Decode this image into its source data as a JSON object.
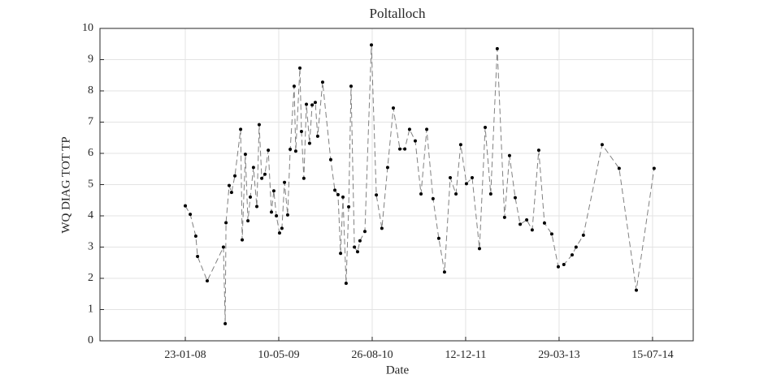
{
  "chart_data": {
    "type": "line",
    "title": "Poltalloch",
    "xlabel": "Date",
    "ylabel": "WQ DIAG TOT TP",
    "x": [
      "2008-01-23",
      "2008-02-17",
      "2008-03-16",
      "2008-03-25",
      "2008-05-13",
      "2008-08-03",
      "2008-08-12",
      "2008-08-16",
      "2008-09-01",
      "2008-09-13",
      "2008-09-30",
      "2008-10-29",
      "2008-11-06",
      "2008-11-22",
      "2008-12-05",
      "2008-12-17",
      "2009-01-02",
      "2009-01-19",
      "2009-01-31",
      "2009-02-13",
      "2009-03-01",
      "2009-03-18",
      "2009-04-03",
      "2009-04-15",
      "2009-04-28",
      "2009-05-14",
      "2009-05-26",
      "2009-06-08",
      "2009-06-24",
      "2009-07-07",
      "2009-07-27",
      "2009-08-04",
      "2009-08-25",
      "2009-09-02",
      "2009-09-14",
      "2009-09-27",
      "2009-10-13",
      "2009-10-26",
      "2009-11-11",
      "2009-11-23",
      "2009-12-18",
      "2010-01-28",
      "2010-02-18",
      "2010-03-06",
      "2010-03-19",
      "2010-03-31",
      "2010-04-16",
      "2010-04-29",
      "2010-05-11",
      "2010-05-28",
      "2010-06-13",
      "2010-06-25",
      "2010-07-20",
      "2010-08-22",
      "2010-09-16",
      "2010-10-14",
      "2010-11-12",
      "2010-12-11",
      "2011-01-13",
      "2011-02-07",
      "2011-03-03",
      "2011-04-01",
      "2011-04-30",
      "2011-05-29",
      "2011-06-30",
      "2011-07-29",
      "2011-08-27",
      "2011-09-25",
      "2011-10-24",
      "2011-11-17",
      "2011-12-16",
      "2012-01-14",
      "2012-02-20",
      "2012-03-20",
      "2012-04-17",
      "2012-05-20",
      "2012-06-26",
      "2012-07-21",
      "2012-08-19",
      "2012-09-13",
      "2012-10-16",
      "2012-11-13",
      "2012-12-16",
      "2013-01-14",
      "2013-02-20",
      "2013-03-25",
      "2013-04-22",
      "2013-06-03",
      "2013-06-23",
      "2013-07-30",
      "2013-11-02",
      "2014-01-27",
      "2014-04-24",
      "2014-07-23"
    ],
    "values": [
      4.32,
      4.05,
      3.35,
      2.7,
      1.92,
      3.0,
      0.55,
      3.78,
      4.97,
      4.75,
      5.28,
      6.77,
      3.23,
      5.97,
      3.84,
      4.6,
      5.55,
      4.3,
      6.92,
      5.2,
      5.33,
      6.1,
      4.12,
      4.8,
      4.0,
      3.45,
      3.6,
      5.07,
      4.03,
      6.13,
      8.15,
      6.07,
      8.73,
      6.7,
      5.2,
      7.57,
      6.32,
      7.55,
      7.63,
      6.55,
      8.28,
      5.8,
      4.82,
      4.68,
      2.8,
      4.6,
      1.84,
      4.29,
      8.15,
      3.0,
      2.85,
      3.2,
      3.5,
      9.47,
      4.67,
      3.6,
      5.55,
      7.45,
      6.14,
      6.14,
      6.77,
      6.4,
      4.7,
      6.77,
      4.55,
      3.28,
      2.2,
      5.22,
      4.7,
      6.28,
      5.03,
      5.22,
      2.95,
      6.83,
      4.7,
      9.35,
      3.95,
      5.93,
      4.58,
      3.73,
      3.87,
      3.55,
      6.1,
      3.77,
      3.42,
      2.37,
      2.44,
      2.75,
      3.0,
      3.38,
      6.28,
      5.52,
      1.62,
      5.52
    ],
    "color": "#808080",
    "marker_color": "#000000",
    "line_style": "dashed",
    "grid": true,
    "xlim": [
      "2006-11-17",
      "2015-02-06"
    ],
    "xticks": [
      {
        "value": "2008-01-23",
        "label": "23-01-08"
      },
      {
        "value": "2009-05-10",
        "label": "10-05-09"
      },
      {
        "value": "2010-08-26",
        "label": "26-08-10"
      },
      {
        "value": "2011-12-12",
        "label": "12-12-11"
      },
      {
        "value": "2013-03-29",
        "label": "29-03-13"
      },
      {
        "value": "2014-07-15",
        "label": "15-07-14"
      }
    ],
    "ylim": [
      0,
      10
    ],
    "yticks": [
      0,
      1,
      2,
      3,
      4,
      5,
      6,
      7,
      8,
      9,
      10
    ]
  }
}
